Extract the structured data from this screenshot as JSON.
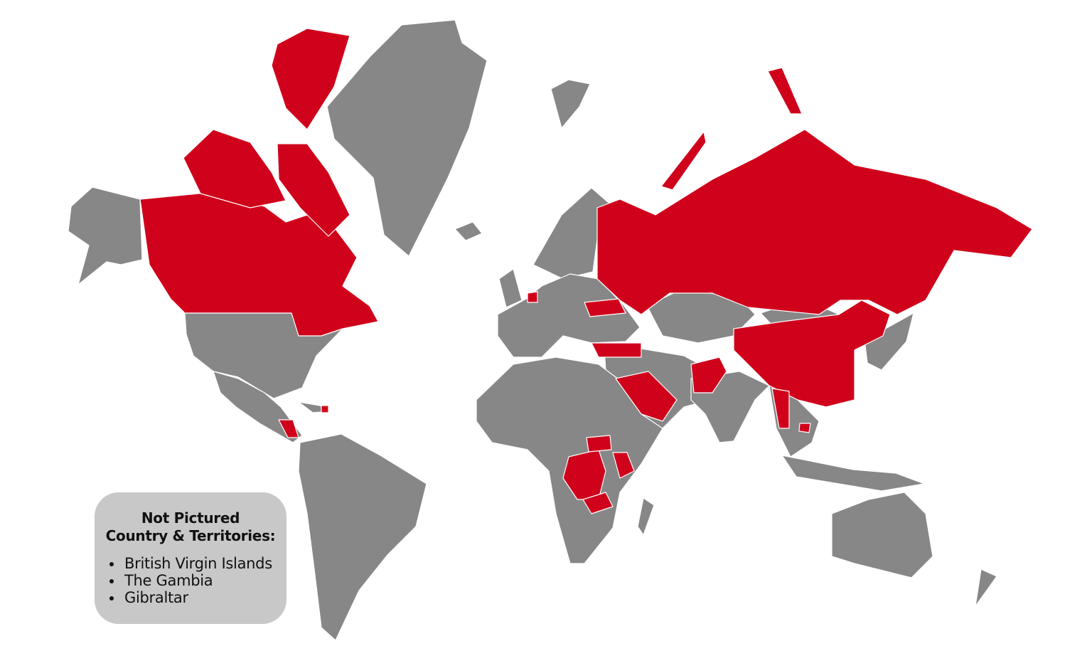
{
  "colors": {
    "background": "#ffffff",
    "highlighted_country": "#d0021b",
    "other_country": "#878787",
    "border": "#ffffff",
    "legend_box": "#c8c8c8"
  },
  "legend": {
    "title_line1": "Not Pictured",
    "title_line2": "Country & Territories:",
    "items": [
      "British Virgin Islands",
      "The Gambia",
      "Gibraltar"
    ]
  }
}
